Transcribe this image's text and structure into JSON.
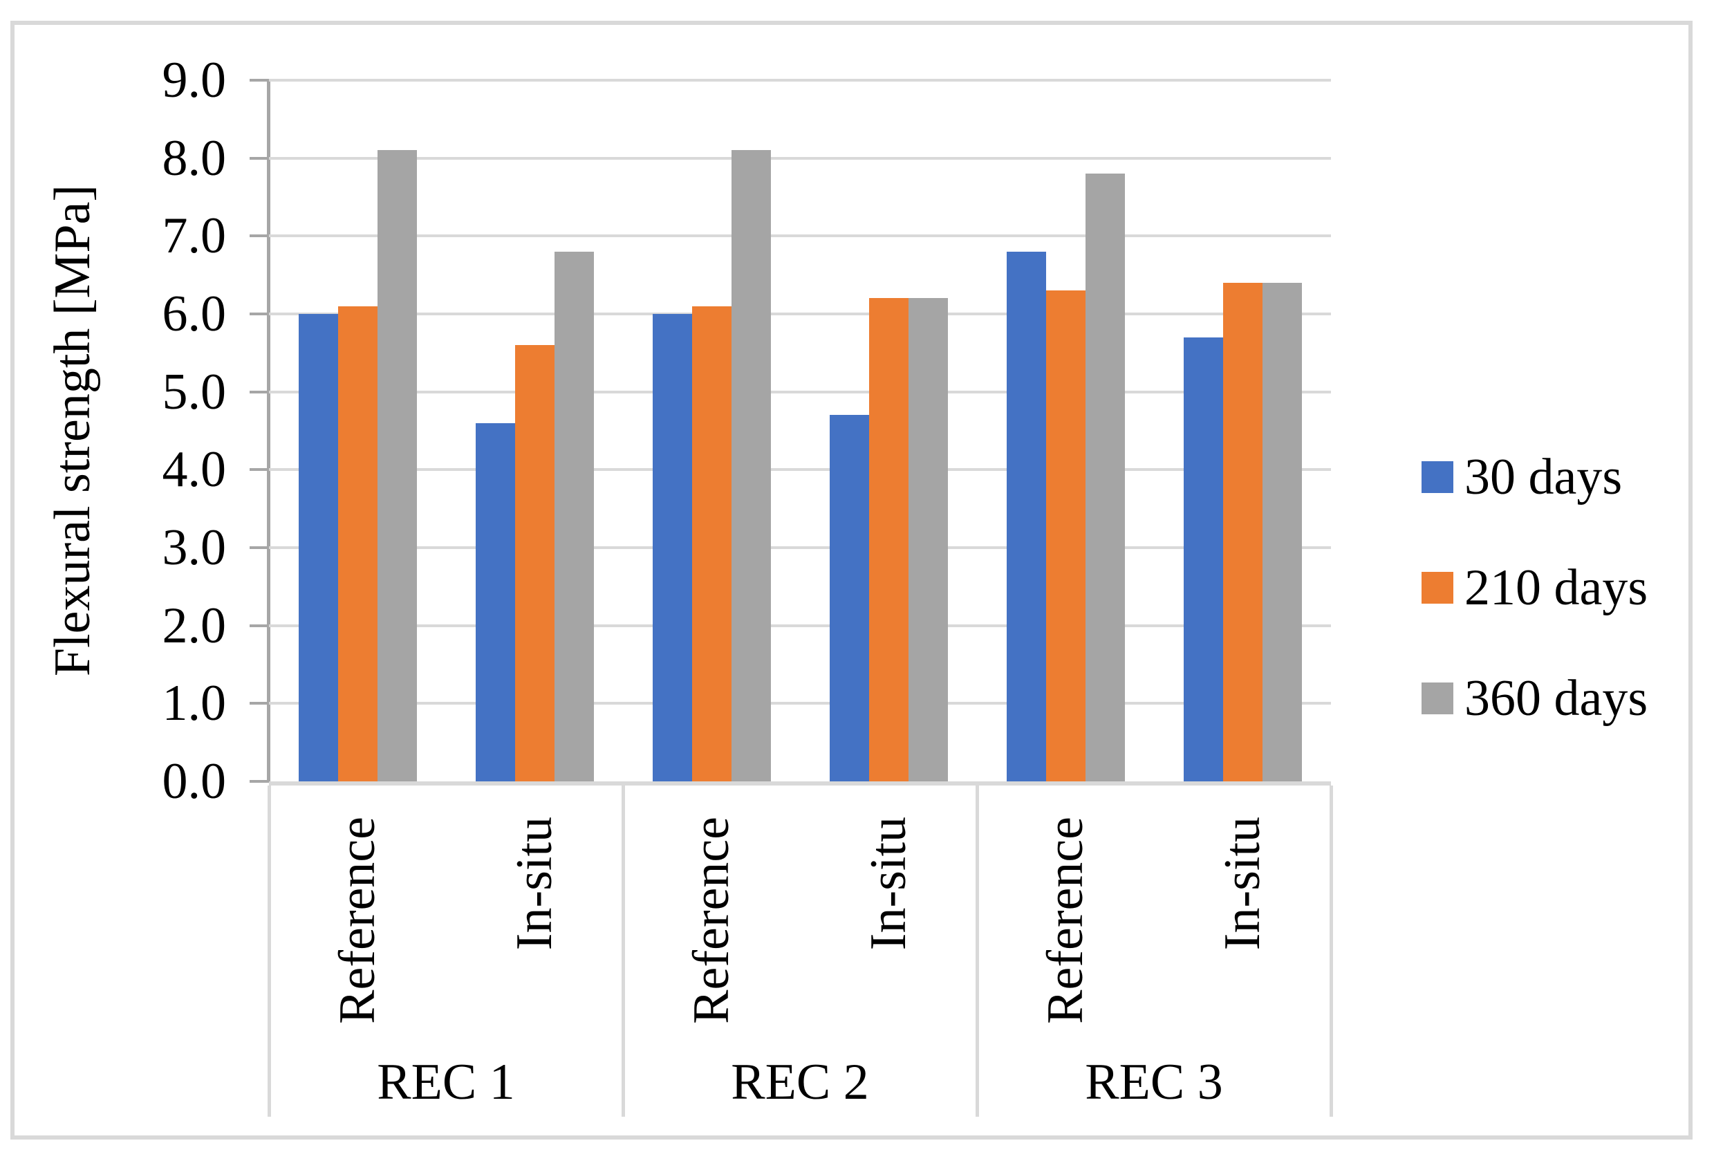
{
  "colors": {
    "background": "#FFFFFF",
    "figure_border": "#D9D9D9",
    "gridline": "#D9D9D9",
    "axis_line": "#A6A6A6",
    "category_line": "#D9D9D9",
    "text": "#000000"
  },
  "chart_data": {
    "type": "bar",
    "title": "",
    "xlabel": "",
    "ylabel": "Flexural strength [MPa]",
    "ylim": [
      0.0,
      9.0
    ],
    "ytick_step": 1.0,
    "ytick_labels": [
      "0.0",
      "1.0",
      "2.0",
      "3.0",
      "4.0",
      "5.0",
      "6.0",
      "7.0",
      "8.0",
      "9.0"
    ],
    "grid": true,
    "legend_position": "right",
    "groups": [
      "REC 1",
      "REC 2",
      "REC 3"
    ],
    "subcategories": [
      "Reference",
      "In-situ"
    ],
    "categories": [
      {
        "group": "REC 1",
        "sub": "Reference"
      },
      {
        "group": "REC 1",
        "sub": "In-situ"
      },
      {
        "group": "REC 2",
        "sub": "Reference"
      },
      {
        "group": "REC 2",
        "sub": "In-situ"
      },
      {
        "group": "REC 3",
        "sub": "Reference"
      },
      {
        "group": "REC 3",
        "sub": "In-situ"
      }
    ],
    "series": [
      {
        "name": "30 days",
        "color": "#4472C4",
        "values": [
          6.0,
          4.6,
          6.0,
          4.7,
          6.8,
          5.7
        ]
      },
      {
        "name": "210 days",
        "color": "#ED7D31",
        "values": [
          6.1,
          5.6,
          6.1,
          6.2,
          6.3,
          6.4
        ]
      },
      {
        "name": "360 days",
        "color": "#A5A5A5",
        "values": [
          8.1,
          6.8,
          8.1,
          6.2,
          7.8,
          6.4
        ]
      }
    ]
  }
}
